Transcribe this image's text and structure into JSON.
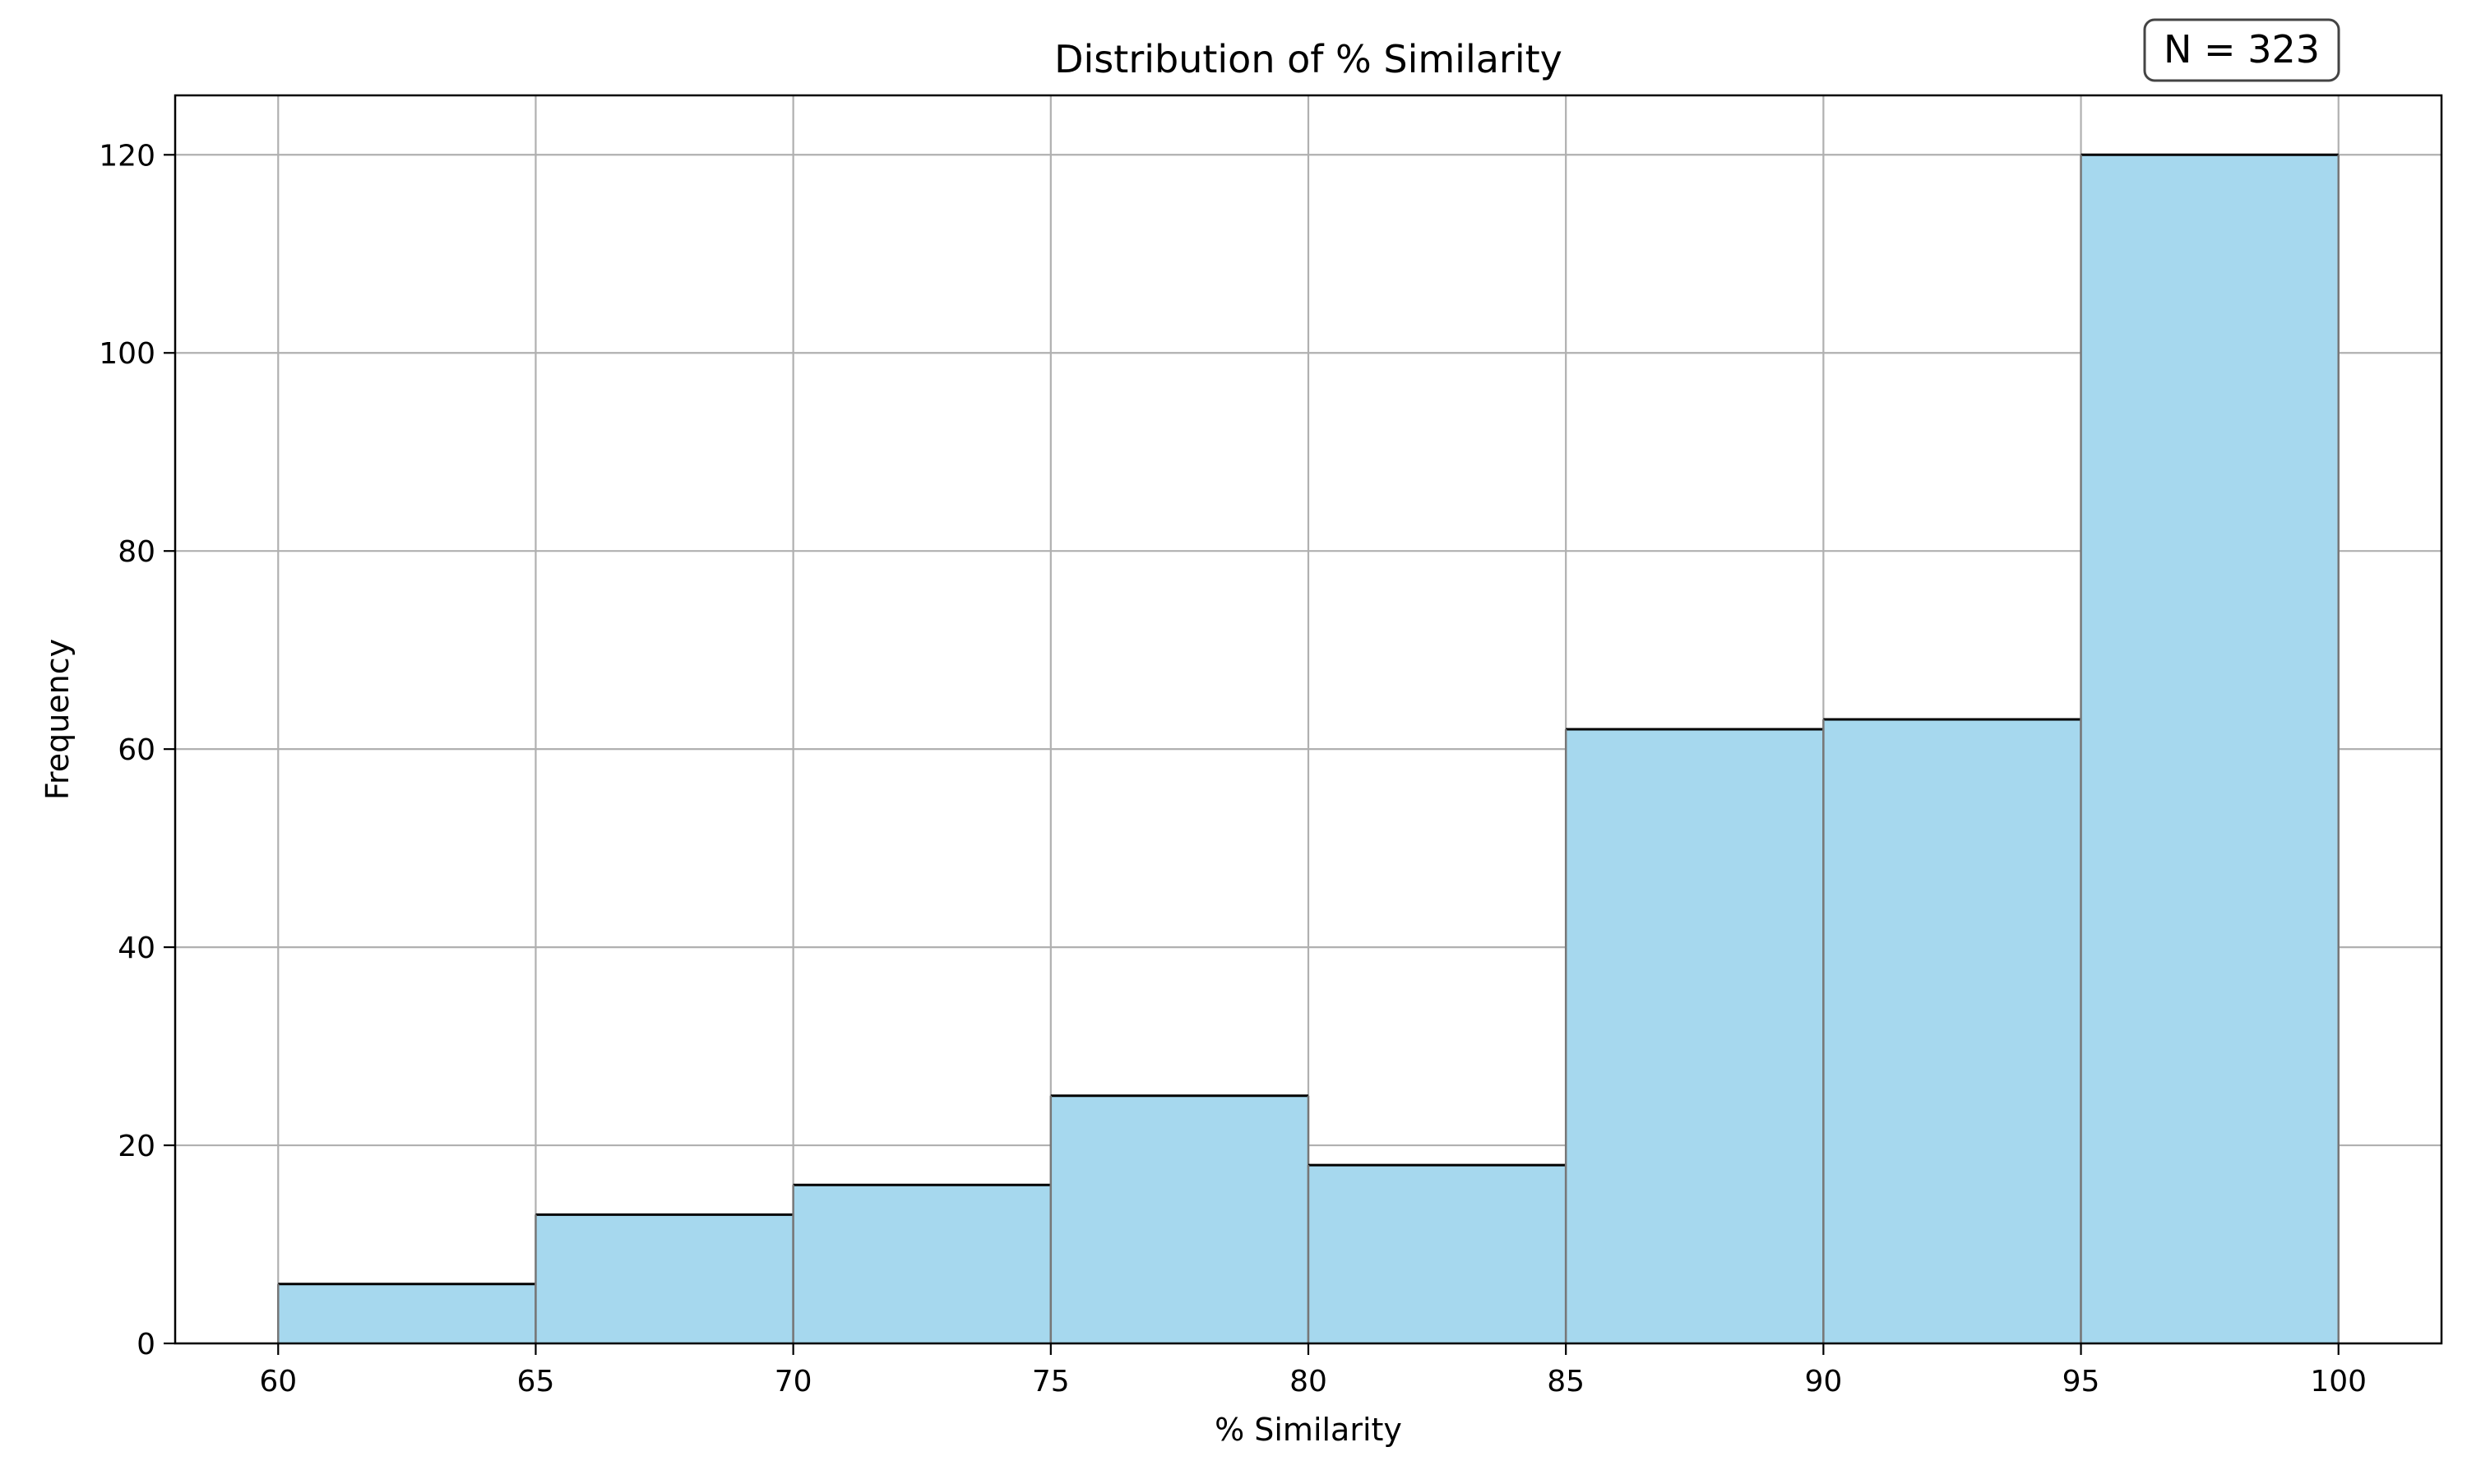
{
  "chart_data": {
    "type": "bar",
    "title": "Distribution of % Similarity",
    "xlabel": "% Similarity",
    "ylabel": "Frequency",
    "annotation": "N = 323",
    "bins": [
      {
        "start": 60,
        "end": 65,
        "count": 6
      },
      {
        "start": 65,
        "end": 70,
        "count": 13
      },
      {
        "start": 70,
        "end": 75,
        "count": 16
      },
      {
        "start": 75,
        "end": 80,
        "count": 25
      },
      {
        "start": 80,
        "end": 85,
        "count": 18
      },
      {
        "start": 85,
        "end": 90,
        "count": 62
      },
      {
        "start": 90,
        "end": 95,
        "count": 63
      },
      {
        "start": 95,
        "end": 100,
        "count": 120
      }
    ],
    "xlim": [
      58,
      102
    ],
    "ylim": [
      0,
      126
    ],
    "xticks": [
      "60",
      "65",
      "70",
      "75",
      "80",
      "85",
      "90",
      "95",
      "100"
    ],
    "yticks": [
      "0",
      "20",
      "40",
      "60",
      "80",
      "100",
      "120"
    ],
    "grid": true,
    "colors": {
      "bar_fill": "#a6d8ee",
      "bar_edge": "#000000",
      "grid": "#b0b0b0"
    }
  }
}
